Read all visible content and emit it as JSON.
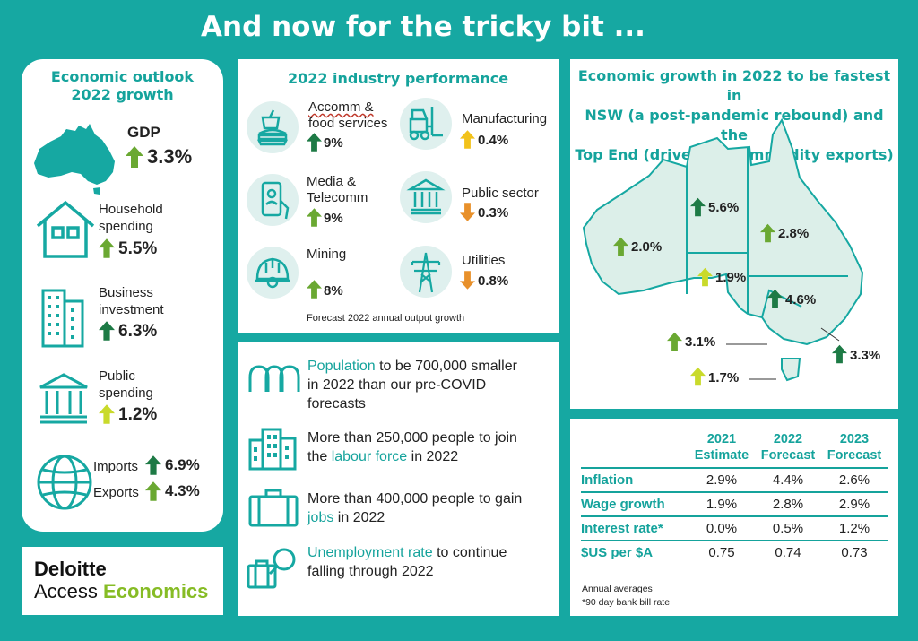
{
  "title": "And now for the tricky bit ...",
  "colors": {
    "teal": "#16a8a2",
    "up_green": "#6aa832",
    "up_dark": "#1d7a45",
    "up_lime": "#c9da2b",
    "down_orange": "#e8902a"
  },
  "outlook": {
    "title_line1": "Economic outlook",
    "title_line2": "2022 growth",
    "gdp": {
      "label": "GDP",
      "value": "3.3%",
      "icon": "australia-map-icon"
    },
    "household": {
      "label1": "Household",
      "label2": "spending",
      "value": "5.5%",
      "icon": "house-icon"
    },
    "business": {
      "label1": "Business",
      "label2": "investment",
      "value": "6.3%",
      "icon": "office-building-icon"
    },
    "public": {
      "label1": "Public",
      "label2": "spending",
      "value": "1.2%",
      "icon": "government-building-icon"
    },
    "imports": {
      "label": "Imports",
      "value": "6.9%"
    },
    "exports": {
      "label": "Exports",
      "value": "4.3%",
      "icon": "globe-icon"
    }
  },
  "industry": {
    "title": "2022 industry performance",
    "items": [
      {
        "label1": "Accomm &",
        "label2": "food services",
        "value": "9%",
        "icon": "food-drink-icon"
      },
      {
        "label1": "Manufacturing",
        "label2": "",
        "value": "0.4%",
        "icon": "forklift-icon"
      },
      {
        "label1": "Media &",
        "label2": "Telecomm",
        "value": "9%",
        "icon": "smartphone-icon"
      },
      {
        "label1": "Public sector",
        "label2": "",
        "value": "0.3%",
        "icon": "government-building-icon"
      },
      {
        "label1": "Mining",
        "label2": "",
        "value": "8%",
        "icon": "hard-hat-icon"
      },
      {
        "label1": "Utilities",
        "label2": "",
        "value": "0.8%",
        "icon": "power-pylon-icon"
      }
    ],
    "footnote": "Forecast 2022 annual output growth"
  },
  "labour": {
    "population": {
      "highlight": "Population",
      "rest1": " to be 700,000 smaller",
      "rest2": "in 2022 than our pre-COVID",
      "rest3": "forecasts"
    },
    "labour_force": {
      "line1": "More than 250,000 people to join",
      "pre": "the ",
      "highlight": "labour force",
      "post": " in 2022"
    },
    "jobs": {
      "line1": "More than 400,000 people to gain",
      "highlight": "jobs",
      "post": " in 2022"
    },
    "unemployment": {
      "highlight": "Unemployment rate",
      "rest1": " to continue",
      "rest2": "falling through 2022"
    }
  },
  "growth": {
    "title_line1": "Economic growth in 2022 to be fastest in",
    "title_line2": "NSW (a post-pandemic rebound) and the",
    "title_line3": "Top End (driven by commodity exports)",
    "states": {
      "wa": "2.0%",
      "nt": "5.6%",
      "qld": "2.8%",
      "sa": "1.9%",
      "nsw": "4.6%",
      "vic": "3.1%",
      "act": "3.3%",
      "tas": "1.7%"
    }
  },
  "forecast": {
    "headers": [
      {
        "line1": "2021",
        "line2": "Estimate"
      },
      {
        "line1": "2022",
        "line2": "Forecast"
      },
      {
        "line1": "2023",
        "line2": "Forecast"
      }
    ],
    "rows": [
      {
        "label": "Inflation",
        "values": [
          "2.9%",
          "4.4%",
          "2.6%"
        ]
      },
      {
        "label": "Wage growth",
        "values": [
          "1.9%",
          "2.8%",
          "2.9%"
        ]
      },
      {
        "label": "Interest rate*",
        "values": [
          "0.0%",
          "0.5%",
          "1.2%"
        ]
      },
      {
        "label": "$US per $A",
        "values": [
          "0.75",
          "0.74",
          "0.73"
        ]
      }
    ],
    "note1": "Annual averages",
    "note2": "*90 day bank bill rate"
  },
  "logo": {
    "line1": "Deloitte",
    "line2a": "Access ",
    "line2b": "Economics"
  }
}
